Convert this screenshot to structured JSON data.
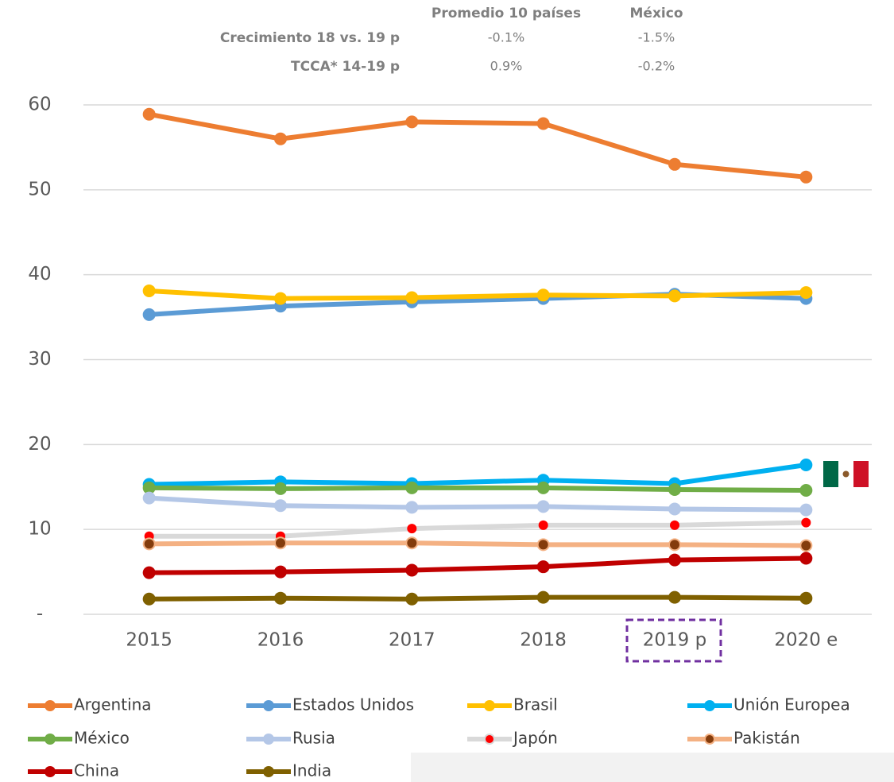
{
  "chart_data": {
    "type": "line",
    "table": {
      "columns": [
        "Promedio 10 países",
        "México"
      ],
      "rows": [
        {
          "label": "Crecimiento 18 vs. 19 p",
          "values": [
            "-0.1%",
            "-1.5%"
          ]
        },
        {
          "label": "TCCA* 14-19 p",
          "values": [
            "0.9%",
            "-0.2%"
          ]
        }
      ]
    },
    "categories": [
      "2015",
      "2016",
      "2017",
      "2018",
      "2019 p",
      "2020 e"
    ],
    "ylim": [
      0,
      60
    ],
    "yticks": [
      {
        "value": 0,
        "label": "-"
      },
      10,
      20,
      30,
      40,
      50,
      60
    ],
    "grid": true,
    "series": [
      {
        "name": "Argentina",
        "color": "#ED7D31",
        "values": [
          58.9,
          56.0,
          58.0,
          57.8,
          53.0,
          51.5
        ]
      },
      {
        "name": "Estados Unidos",
        "color": "#5B9BD5",
        "values": [
          35.3,
          36.3,
          36.8,
          37.2,
          37.7,
          37.2
        ]
      },
      {
        "name": "Brasil",
        "color": "#FFC000",
        "values": [
          38.1,
          37.2,
          37.3,
          37.6,
          37.5,
          37.9
        ]
      },
      {
        "name": "Unión Europea",
        "color": "#00B0F0",
        "values": [
          15.3,
          15.6,
          15.4,
          15.8,
          15.4,
          17.6
        ]
      },
      {
        "name": "México",
        "color": "#70AD47",
        "values": [
          14.9,
          14.8,
          14.9,
          14.9,
          14.7,
          14.6
        ]
      },
      {
        "name": "Rusia",
        "color": "#B4C7E7",
        "values": [
          13.7,
          12.8,
          12.6,
          12.7,
          12.4,
          12.3
        ]
      },
      {
        "name": "Japón",
        "color": "#D9D9D9",
        "marker_color": "#FF0000",
        "values": [
          9.2,
          9.2,
          10.1,
          10.5,
          10.5,
          10.8
        ]
      },
      {
        "name": "Pakistán",
        "color": "#F4B183",
        "marker_color": "#843C0C",
        "values": [
          8.3,
          8.4,
          8.4,
          8.2,
          8.2,
          8.1
        ]
      },
      {
        "name": "China",
        "color": "#C00000",
        "values": [
          4.9,
          5.0,
          5.2,
          5.6,
          6.4,
          6.6
        ]
      },
      {
        "name": "India",
        "color": "#7F6000",
        "values": [
          1.8,
          1.9,
          1.8,
          2.0,
          2.0,
          1.9
        ]
      }
    ]
  }
}
